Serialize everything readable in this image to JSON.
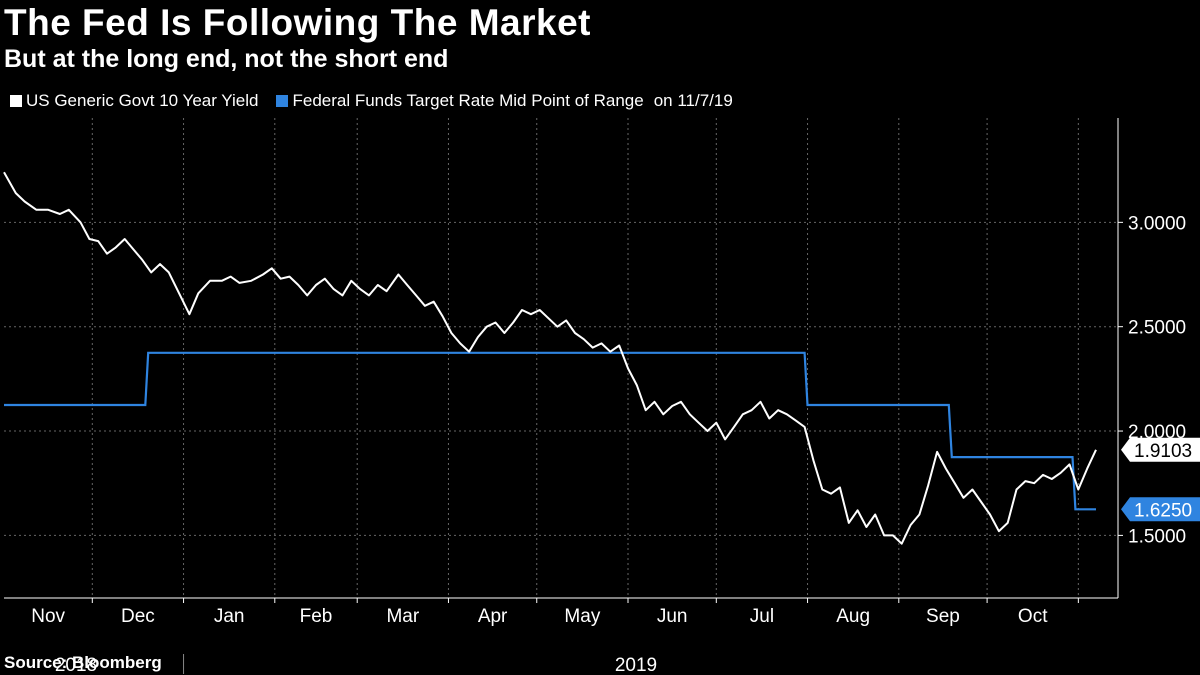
{
  "header": {
    "title": "The Fed Is Following The Market",
    "subtitle": "But at the long end, not the short end"
  },
  "legend": {
    "series1": "US Generic Govt 10 Year Yield",
    "series2": "Federal Funds Target Rate Mid Point of Range",
    "as_of": "on 11/7/19"
  },
  "footer": {
    "source": "Source: Bloomberg"
  },
  "colors": {
    "background": "#000000",
    "yield": "#ffffff",
    "fed": "#2f84e0",
    "grid": "#666666"
  },
  "chart_data": {
    "type": "line",
    "title": "The Fed Is Following The Market",
    "subtitle": "But at the long end, not the short end",
    "xlabel": "",
    "ylabel": "",
    "x_range": [
      "2018-11-01",
      "2019-11-07"
    ],
    "ylim": [
      1.2,
      3.5
    ],
    "y_ticks": [
      1.5,
      2.0,
      2.5,
      3.0
    ],
    "y_tick_labels": [
      "1.5000",
      "2.0000",
      "2.5000",
      "3.0000"
    ],
    "month_labels": [
      "Nov",
      "Dec",
      "Jan",
      "Feb",
      "Mar",
      "Apr",
      "May",
      "Jun",
      "Jul",
      "Aug",
      "Sep",
      "Oct"
    ],
    "year_labels": [
      "2018",
      "2019"
    ],
    "grid": true,
    "legend_position": "top-left",
    "series": [
      {
        "name": "US Generic Govt 10 Year Yield",
        "color": "#ffffff",
        "last_value": 1.9103,
        "last_label": "1.9103",
        "points": [
          [
            "2018-11-01",
            3.24
          ],
          [
            "2018-11-05",
            3.14
          ],
          [
            "2018-11-08",
            3.1
          ],
          [
            "2018-11-12",
            3.06
          ],
          [
            "2018-11-16",
            3.06
          ],
          [
            "2018-11-20",
            3.04
          ],
          [
            "2018-11-23",
            3.06
          ],
          [
            "2018-11-27",
            3.0
          ],
          [
            "2018-11-30",
            2.92
          ],
          [
            "2018-12-03",
            2.91
          ],
          [
            "2018-12-06",
            2.85
          ],
          [
            "2018-12-09",
            2.88
          ],
          [
            "2018-12-12",
            2.92
          ],
          [
            "2018-12-15",
            2.87
          ],
          [
            "2018-12-18",
            2.82
          ],
          [
            "2018-12-21",
            2.76
          ],
          [
            "2018-12-24",
            2.8
          ],
          [
            "2018-12-27",
            2.76
          ],
          [
            "2019-01-03",
            2.56
          ],
          [
            "2019-01-06",
            2.66
          ],
          [
            "2019-01-10",
            2.72
          ],
          [
            "2019-01-14",
            2.72
          ],
          [
            "2019-01-17",
            2.74
          ],
          [
            "2019-01-20",
            2.71
          ],
          [
            "2019-01-24",
            2.72
          ],
          [
            "2019-01-28",
            2.75
          ],
          [
            "2019-01-31",
            2.78
          ],
          [
            "2019-02-03",
            2.73
          ],
          [
            "2019-02-06",
            2.74
          ],
          [
            "2019-02-09",
            2.7
          ],
          [
            "2019-02-12",
            2.65
          ],
          [
            "2019-02-15",
            2.7
          ],
          [
            "2019-02-18",
            2.73
          ],
          [
            "2019-02-21",
            2.68
          ],
          [
            "2019-02-24",
            2.65
          ],
          [
            "2019-02-27",
            2.72
          ],
          [
            "2019-03-02",
            2.68
          ],
          [
            "2019-03-05",
            2.65
          ],
          [
            "2019-03-08",
            2.7
          ],
          [
            "2019-03-11",
            2.67
          ],
          [
            "2019-03-15",
            2.75
          ],
          [
            "2019-03-18",
            2.7
          ],
          [
            "2019-03-21",
            2.65
          ],
          [
            "2019-03-24",
            2.6
          ],
          [
            "2019-03-27",
            2.62
          ],
          [
            "2019-03-30",
            2.55
          ],
          [
            "2019-04-02",
            2.47
          ],
          [
            "2019-04-05",
            2.42
          ],
          [
            "2019-04-08",
            2.38
          ],
          [
            "2019-04-11",
            2.45
          ],
          [
            "2019-04-14",
            2.5
          ],
          [
            "2019-04-17",
            2.52
          ],
          [
            "2019-04-20",
            2.47
          ],
          [
            "2019-04-23",
            2.52
          ],
          [
            "2019-04-26",
            2.58
          ],
          [
            "2019-04-29",
            2.56
          ],
          [
            "2019-05-02",
            2.58
          ],
          [
            "2019-05-05",
            2.54
          ],
          [
            "2019-05-08",
            2.5
          ],
          [
            "2019-05-11",
            2.53
          ],
          [
            "2019-05-14",
            2.47
          ],
          [
            "2019-05-17",
            2.44
          ],
          [
            "2019-05-20",
            2.4
          ],
          [
            "2019-05-23",
            2.42
          ],
          [
            "2019-05-26",
            2.38
          ],
          [
            "2019-05-29",
            2.41
          ],
          [
            "2019-06-01",
            2.3
          ],
          [
            "2019-06-04",
            2.22
          ],
          [
            "2019-06-07",
            2.1
          ],
          [
            "2019-06-10",
            2.14
          ],
          [
            "2019-06-13",
            2.08
          ],
          [
            "2019-06-16",
            2.12
          ],
          [
            "2019-06-19",
            2.14
          ],
          [
            "2019-06-22",
            2.08
          ],
          [
            "2019-06-25",
            2.04
          ],
          [
            "2019-06-28",
            2.0
          ],
          [
            "2019-07-01",
            2.04
          ],
          [
            "2019-07-04",
            1.96
          ],
          [
            "2019-07-07",
            2.02
          ],
          [
            "2019-07-10",
            2.08
          ],
          [
            "2019-07-13",
            2.1
          ],
          [
            "2019-07-16",
            2.14
          ],
          [
            "2019-07-19",
            2.06
          ],
          [
            "2019-07-22",
            2.1
          ],
          [
            "2019-07-25",
            2.08
          ],
          [
            "2019-07-28",
            2.05
          ],
          [
            "2019-07-31",
            2.02
          ],
          [
            "2019-08-03",
            1.86
          ],
          [
            "2019-08-06",
            1.72
          ],
          [
            "2019-08-09",
            1.7
          ],
          [
            "2019-08-12",
            1.73
          ],
          [
            "2019-08-15",
            1.56
          ],
          [
            "2019-08-18",
            1.62
          ],
          [
            "2019-08-21",
            1.54
          ],
          [
            "2019-08-24",
            1.6
          ],
          [
            "2019-08-27",
            1.5
          ],
          [
            "2019-08-30",
            1.5
          ],
          [
            "2019-09-02",
            1.46
          ],
          [
            "2019-09-05",
            1.55
          ],
          [
            "2019-09-08",
            1.6
          ],
          [
            "2019-09-11",
            1.74
          ],
          [
            "2019-09-14",
            1.9
          ],
          [
            "2019-09-17",
            1.82
          ],
          [
            "2019-09-20",
            1.75
          ],
          [
            "2019-09-23",
            1.68
          ],
          [
            "2019-09-26",
            1.72
          ],
          [
            "2019-09-29",
            1.66
          ],
          [
            "2019-10-02",
            1.6
          ],
          [
            "2019-10-05",
            1.52
          ],
          [
            "2019-10-08",
            1.56
          ],
          [
            "2019-10-11",
            1.72
          ],
          [
            "2019-10-14",
            1.76
          ],
          [
            "2019-10-17",
            1.75
          ],
          [
            "2019-10-20",
            1.79
          ],
          [
            "2019-10-23",
            1.77
          ],
          [
            "2019-10-26",
            1.8
          ],
          [
            "2019-10-29",
            1.84
          ],
          [
            "2019-11-01",
            1.72
          ],
          [
            "2019-11-04",
            1.82
          ],
          [
            "2019-11-07",
            1.91
          ]
        ]
      },
      {
        "name": "Federal Funds Target Rate Mid Point of Range",
        "color": "#2f84e0",
        "last_value": 1.625,
        "last_label": "1.6250",
        "step": true,
        "points": [
          [
            "2018-11-01",
            2.125
          ],
          [
            "2018-12-19",
            2.125
          ],
          [
            "2018-12-20",
            2.375
          ],
          [
            "2019-07-31",
            2.375
          ],
          [
            "2019-08-01",
            2.125
          ],
          [
            "2019-09-18",
            2.125
          ],
          [
            "2019-09-19",
            1.875
          ],
          [
            "2019-10-30",
            1.875
          ],
          [
            "2019-10-31",
            1.625
          ],
          [
            "2019-11-07",
            1.625
          ]
        ]
      }
    ]
  }
}
